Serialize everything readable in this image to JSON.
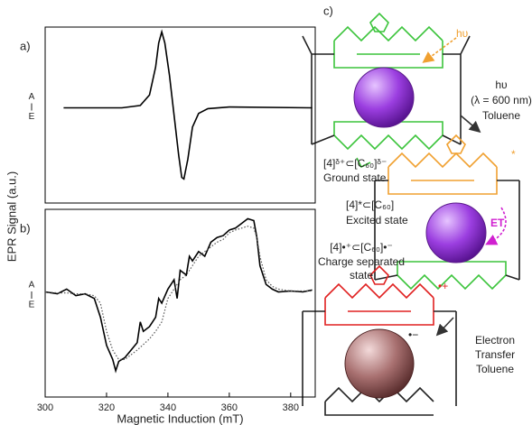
{
  "figure": {
    "ylabel": "EPR Signal (a.u.)",
    "panel_c": {
      "label": "c)",
      "ground_formula": "[4]ᵟ⁺⊂[C₆₀]ᵟ⁻",
      "ground_state": "Ground state",
      "excitation_hv": "hυ",
      "step1": [
        "hυ",
        "(λ = 600 nm)",
        "Toluene"
      ],
      "excited_formula": "[4]*⊂[C₆₀]",
      "excited_state": "Excited state",
      "excited_mark": "*",
      "et": "ET",
      "step2": [
        "Electron",
        "Transfer",
        "Toluene"
      ],
      "cs_formula": "[4]•⁺⊂[C₆₀]•⁻",
      "cs_state": [
        "Charge separated",
        "state"
      ],
      "cs_cation_mark": "•+",
      "cs_anion_mark": "•−"
    }
  },
  "chart_data": [
    {
      "type": "line",
      "panel_label": "a)",
      "annotations": [
        "A",
        "E"
      ],
      "x": [
        306,
        325,
        331,
        334,
        336,
        337,
        338,
        339,
        340.5,
        342,
        343.5,
        344.5,
        345.2,
        346.5,
        348,
        350,
        353,
        360,
        387
      ],
      "series": [
        {
          "color": "#000000",
          "values": [
            0.19,
            0.19,
            0.22,
            0.35,
            0.7,
            1.0,
            1.14,
            1.0,
            0.6,
            0.1,
            -0.4,
            -0.68,
            -0.7,
            -0.45,
            -0.05,
            0.12,
            0.18,
            0.2,
            0.19
          ]
        }
      ],
      "xlim": [
        300,
        388
      ],
      "ylim": [
        -1,
        1.2
      ]
    },
    {
      "type": "line",
      "panel_label": "b)",
      "annotations": [
        "A",
        "E"
      ],
      "xlabel": "Magnetic Induction (mT)",
      "x": [
        300,
        304,
        307,
        310,
        313,
        316,
        318,
        320,
        322,
        323,
        324,
        326,
        328,
        330,
        331,
        332,
        334,
        336,
        337,
        338,
        340,
        342,
        343,
        344,
        346,
        347,
        348,
        350,
        352,
        354,
        356,
        358,
        360,
        362,
        364,
        366,
        368,
        369,
        370,
        372,
        374,
        376,
        380,
        384,
        387
      ],
      "series": [
        {
          "color": "#000000",
          "linestyle": "solid",
          "values": [
            0.12,
            0.1,
            0.15,
            0.08,
            0.1,
            0.05,
            -0.15,
            -0.45,
            -0.6,
            -0.72,
            -0.62,
            -0.58,
            -0.5,
            -0.42,
            -0.2,
            -0.3,
            -0.25,
            -0.15,
            0.05,
            0.0,
            0.15,
            0.25,
            0.05,
            0.35,
            0.3,
            0.5,
            0.45,
            0.55,
            0.5,
            0.65,
            0.7,
            0.72,
            0.78,
            0.8,
            0.85,
            0.9,
            0.88,
            0.7,
            0.4,
            0.2,
            0.15,
            0.12,
            0.13,
            0.12,
            0.14
          ]
        },
        {
          "color": "#555555",
          "linestyle": "dotted",
          "values": [
            0.12,
            0.11,
            0.11,
            0.1,
            0.1,
            0.08,
            0.0,
            -0.3,
            -0.5,
            -0.55,
            -0.6,
            -0.6,
            -0.55,
            -0.5,
            -0.47,
            -0.44,
            -0.38,
            -0.3,
            -0.25,
            -0.2,
            0.05,
            0.15,
            0.2,
            0.25,
            0.3,
            0.35,
            0.4,
            0.5,
            0.55,
            0.6,
            0.65,
            0.68,
            0.75,
            0.78,
            0.8,
            0.82,
            0.8,
            0.7,
            0.5,
            0.25,
            0.18,
            0.15,
            0.13,
            0.13,
            0.13
          ]
        }
      ],
      "xlim": [
        300,
        388
      ],
      "ylim": [
        -1,
        1
      ],
      "xticks": [
        300,
        320,
        340,
        360,
        380
      ]
    }
  ]
}
